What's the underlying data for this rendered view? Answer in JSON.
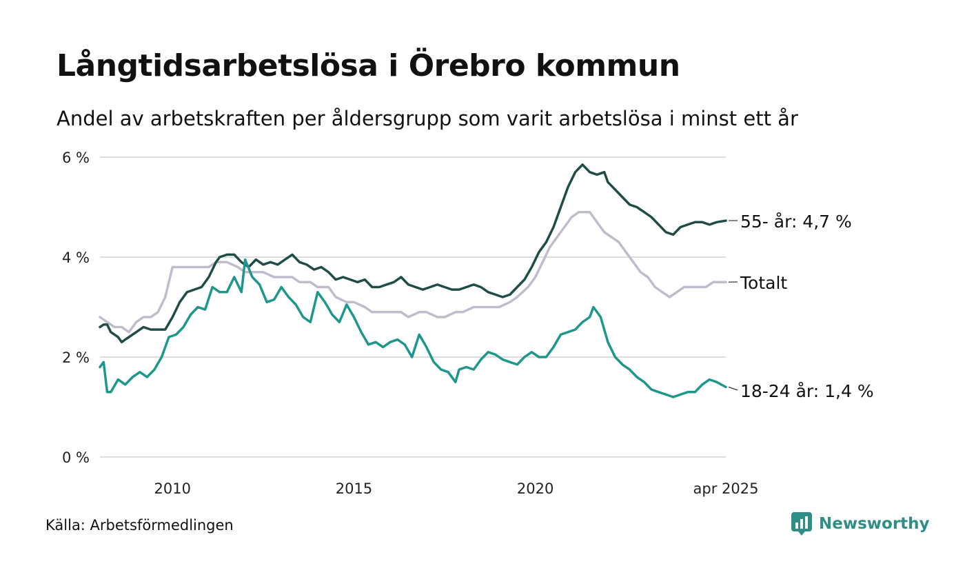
{
  "header": {
    "title": "Långtidsarbetslösa i Örebro kommun",
    "subtitle": "Andel av arbetskraften per åldersgrupp som varit arbetslösa i minst ett år"
  },
  "footer": {
    "source": "Källa: Arbetsförmedlingen",
    "brand": "Newsworthy",
    "brand_icon": "bar-chart-icon",
    "brand_color": "#2f8f86"
  },
  "chart_data": {
    "type": "line",
    "x_unit": "year",
    "xlim": [
      2008.0,
      2025.25
    ],
    "ylim": [
      0,
      6
    ],
    "y_ticks": [
      {
        "value": 0,
        "label": "0 %"
      },
      {
        "value": 2,
        "label": "2 %"
      },
      {
        "value": 4,
        "label": "4 %"
      },
      {
        "value": 6,
        "label": "6 %"
      }
    ],
    "x_ticks": [
      {
        "value": 2010,
        "label": "2010"
      },
      {
        "value": 2015,
        "label": "2015"
      },
      {
        "value": 2020,
        "label": "2020"
      },
      {
        "value": 2025.25,
        "label": "apr 2025"
      }
    ],
    "grid": "horizontal",
    "legend": "direct labels at line ends",
    "series": [
      {
        "name": "Totalt",
        "end_label": "Totalt",
        "color": "#c0bccb",
        "points": [
          [
            2008.0,
            2.8
          ],
          [
            2008.2,
            2.7
          ],
          [
            2008.4,
            2.6
          ],
          [
            2008.6,
            2.6
          ],
          [
            2008.8,
            2.5
          ],
          [
            2009.0,
            2.7
          ],
          [
            2009.2,
            2.8
          ],
          [
            2009.4,
            2.8
          ],
          [
            2009.6,
            2.9
          ],
          [
            2009.8,
            3.2
          ],
          [
            2010.0,
            3.8
          ],
          [
            2010.3,
            3.8
          ],
          [
            2010.5,
            3.8
          ],
          [
            2010.8,
            3.8
          ],
          [
            2011.0,
            3.8
          ],
          [
            2011.2,
            3.9
          ],
          [
            2011.5,
            3.9
          ],
          [
            2011.8,
            3.8
          ],
          [
            2012.0,
            3.7
          ],
          [
            2012.3,
            3.7
          ],
          [
            2012.5,
            3.7
          ],
          [
            2012.8,
            3.6
          ],
          [
            2013.0,
            3.6
          ],
          [
            2013.3,
            3.6
          ],
          [
            2013.5,
            3.5
          ],
          [
            2013.8,
            3.5
          ],
          [
            2014.0,
            3.4
          ],
          [
            2014.3,
            3.4
          ],
          [
            2014.5,
            3.2
          ],
          [
            2014.8,
            3.1
          ],
          [
            2015.0,
            3.1
          ],
          [
            2015.3,
            3.0
          ],
          [
            2015.5,
            2.9
          ],
          [
            2015.8,
            2.9
          ],
          [
            2016.0,
            2.9
          ],
          [
            2016.3,
            2.9
          ],
          [
            2016.5,
            2.8
          ],
          [
            2016.8,
            2.9
          ],
          [
            2017.0,
            2.9
          ],
          [
            2017.3,
            2.8
          ],
          [
            2017.5,
            2.8
          ],
          [
            2017.8,
            2.9
          ],
          [
            2018.0,
            2.9
          ],
          [
            2018.3,
            3.0
          ],
          [
            2018.5,
            3.0
          ],
          [
            2018.8,
            3.0
          ],
          [
            2019.0,
            3.0
          ],
          [
            2019.3,
            3.1
          ],
          [
            2019.5,
            3.2
          ],
          [
            2019.8,
            3.4
          ],
          [
            2020.0,
            3.6
          ],
          [
            2020.2,
            3.9
          ],
          [
            2020.4,
            4.2
          ],
          [
            2020.6,
            4.4
          ],
          [
            2020.8,
            4.6
          ],
          [
            2021.0,
            4.8
          ],
          [
            2021.2,
            4.9
          ],
          [
            2021.5,
            4.9
          ],
          [
            2021.7,
            4.7
          ],
          [
            2021.9,
            4.5
          ],
          [
            2022.1,
            4.4
          ],
          [
            2022.3,
            4.3
          ],
          [
            2022.5,
            4.1
          ],
          [
            2022.7,
            3.9
          ],
          [
            2022.9,
            3.7
          ],
          [
            2023.1,
            3.6
          ],
          [
            2023.3,
            3.4
          ],
          [
            2023.5,
            3.3
          ],
          [
            2023.7,
            3.2
          ],
          [
            2023.9,
            3.3
          ],
          [
            2024.1,
            3.4
          ],
          [
            2024.3,
            3.4
          ],
          [
            2024.5,
            3.4
          ],
          [
            2024.7,
            3.4
          ],
          [
            2024.9,
            3.5
          ],
          [
            2025.1,
            3.5
          ],
          [
            2025.25,
            3.5
          ]
        ]
      },
      {
        "name": "55- år",
        "end_label": "55- år: 4,7 %",
        "color": "#1f4d46",
        "points": [
          [
            2008.0,
            2.6
          ],
          [
            2008.1,
            2.65
          ],
          [
            2008.2,
            2.65
          ],
          [
            2008.3,
            2.5
          ],
          [
            2008.4,
            2.45
          ],
          [
            2008.5,
            2.4
          ],
          [
            2008.6,
            2.3
          ],
          [
            2008.7,
            2.35
          ],
          [
            2008.8,
            2.4
          ],
          [
            2009.0,
            2.5
          ],
          [
            2009.2,
            2.6
          ],
          [
            2009.4,
            2.55
          ],
          [
            2009.6,
            2.55
          ],
          [
            2009.8,
            2.55
          ],
          [
            2010.0,
            2.8
          ],
          [
            2010.2,
            3.1
          ],
          [
            2010.4,
            3.3
          ],
          [
            2010.6,
            3.35
          ],
          [
            2010.8,
            3.4
          ],
          [
            2011.0,
            3.6
          ],
          [
            2011.2,
            3.9
          ],
          [
            2011.3,
            4.0
          ],
          [
            2011.5,
            4.05
          ],
          [
            2011.7,
            4.05
          ],
          [
            2011.9,
            3.9
          ],
          [
            2012.1,
            3.8
          ],
          [
            2012.3,
            3.95
          ],
          [
            2012.5,
            3.85
          ],
          [
            2012.7,
            3.9
          ],
          [
            2012.9,
            3.85
          ],
          [
            2013.1,
            3.95
          ],
          [
            2013.3,
            4.05
          ],
          [
            2013.5,
            3.9
          ],
          [
            2013.7,
            3.85
          ],
          [
            2013.9,
            3.75
          ],
          [
            2014.1,
            3.8
          ],
          [
            2014.3,
            3.7
          ],
          [
            2014.5,
            3.55
          ],
          [
            2014.7,
            3.6
          ],
          [
            2014.9,
            3.55
          ],
          [
            2015.1,
            3.5
          ],
          [
            2015.3,
            3.55
          ],
          [
            2015.5,
            3.4
          ],
          [
            2015.7,
            3.4
          ],
          [
            2015.9,
            3.45
          ],
          [
            2016.1,
            3.5
          ],
          [
            2016.3,
            3.6
          ],
          [
            2016.5,
            3.45
          ],
          [
            2016.7,
            3.4
          ],
          [
            2016.9,
            3.35
          ],
          [
            2017.1,
            3.4
          ],
          [
            2017.3,
            3.45
          ],
          [
            2017.5,
            3.4
          ],
          [
            2017.7,
            3.35
          ],
          [
            2017.9,
            3.35
          ],
          [
            2018.1,
            3.4
          ],
          [
            2018.3,
            3.45
          ],
          [
            2018.5,
            3.4
          ],
          [
            2018.7,
            3.3
          ],
          [
            2018.9,
            3.25
          ],
          [
            2019.1,
            3.2
          ],
          [
            2019.3,
            3.25
          ],
          [
            2019.5,
            3.4
          ],
          [
            2019.7,
            3.55
          ],
          [
            2019.9,
            3.8
          ],
          [
            2020.1,
            4.1
          ],
          [
            2020.3,
            4.3
          ],
          [
            2020.5,
            4.6
          ],
          [
            2020.7,
            5.0
          ],
          [
            2020.9,
            5.4
          ],
          [
            2021.1,
            5.7
          ],
          [
            2021.3,
            5.85
          ],
          [
            2021.5,
            5.7
          ],
          [
            2021.7,
            5.65
          ],
          [
            2021.9,
            5.7
          ],
          [
            2022.0,
            5.5
          ],
          [
            2022.2,
            5.35
          ],
          [
            2022.4,
            5.2
          ],
          [
            2022.6,
            5.05
          ],
          [
            2022.8,
            5.0
          ],
          [
            2023.0,
            4.9
          ],
          [
            2023.2,
            4.8
          ],
          [
            2023.4,
            4.65
          ],
          [
            2023.6,
            4.5
          ],
          [
            2023.8,
            4.45
          ],
          [
            2024.0,
            4.6
          ],
          [
            2024.2,
            4.65
          ],
          [
            2024.4,
            4.7
          ],
          [
            2024.6,
            4.7
          ],
          [
            2024.8,
            4.65
          ],
          [
            2025.0,
            4.7
          ],
          [
            2025.25,
            4.73
          ]
        ]
      },
      {
        "name": "18-24 år",
        "end_label": "18-24 år: 1,4 %",
        "color": "#1e978b",
        "points": [
          [
            2008.0,
            1.8
          ],
          [
            2008.1,
            1.9
          ],
          [
            2008.2,
            1.3
          ],
          [
            2008.3,
            1.3
          ],
          [
            2008.5,
            1.55
          ],
          [
            2008.7,
            1.45
          ],
          [
            2008.9,
            1.6
          ],
          [
            2009.1,
            1.7
          ],
          [
            2009.3,
            1.6
          ],
          [
            2009.5,
            1.75
          ],
          [
            2009.7,
            2.0
          ],
          [
            2009.9,
            2.4
          ],
          [
            2010.1,
            2.45
          ],
          [
            2010.3,
            2.6
          ],
          [
            2010.5,
            2.85
          ],
          [
            2010.7,
            3.0
          ],
          [
            2010.9,
            2.95
          ],
          [
            2011.1,
            3.4
          ],
          [
            2011.3,
            3.3
          ],
          [
            2011.5,
            3.3
          ],
          [
            2011.7,
            3.6
          ],
          [
            2011.9,
            3.3
          ],
          [
            2012.0,
            3.95
          ],
          [
            2012.2,
            3.6
          ],
          [
            2012.4,
            3.45
          ],
          [
            2012.6,
            3.1
          ],
          [
            2012.8,
            3.15
          ],
          [
            2013.0,
            3.4
          ],
          [
            2013.2,
            3.2
          ],
          [
            2013.4,
            3.05
          ],
          [
            2013.6,
            2.8
          ],
          [
            2013.8,
            2.7
          ],
          [
            2014.0,
            3.3
          ],
          [
            2014.2,
            3.1
          ],
          [
            2014.4,
            2.85
          ],
          [
            2014.6,
            2.7
          ],
          [
            2014.8,
            3.05
          ],
          [
            2015.0,
            2.8
          ],
          [
            2015.2,
            2.5
          ],
          [
            2015.4,
            2.25
          ],
          [
            2015.6,
            2.3
          ],
          [
            2015.8,
            2.2
          ],
          [
            2016.0,
            2.3
          ],
          [
            2016.2,
            2.35
          ],
          [
            2016.4,
            2.25
          ],
          [
            2016.6,
            2.0
          ],
          [
            2016.8,
            2.45
          ],
          [
            2017.0,
            2.2
          ],
          [
            2017.2,
            1.9
          ],
          [
            2017.4,
            1.75
          ],
          [
            2017.6,
            1.7
          ],
          [
            2017.8,
            1.5
          ],
          [
            2017.9,
            1.75
          ],
          [
            2018.1,
            1.8
          ],
          [
            2018.3,
            1.75
          ],
          [
            2018.5,
            1.95
          ],
          [
            2018.7,
            2.1
          ],
          [
            2018.9,
            2.05
          ],
          [
            2019.1,
            1.95
          ],
          [
            2019.3,
            1.9
          ],
          [
            2019.5,
            1.85
          ],
          [
            2019.7,
            2.0
          ],
          [
            2019.9,
            2.1
          ],
          [
            2020.1,
            2.0
          ],
          [
            2020.3,
            2.0
          ],
          [
            2020.5,
            2.2
          ],
          [
            2020.7,
            2.45
          ],
          [
            2020.9,
            2.5
          ],
          [
            2021.1,
            2.55
          ],
          [
            2021.3,
            2.7
          ],
          [
            2021.5,
            2.8
          ],
          [
            2021.6,
            3.0
          ],
          [
            2021.8,
            2.8
          ],
          [
            2022.0,
            2.3
          ],
          [
            2022.2,
            2.0
          ],
          [
            2022.4,
            1.85
          ],
          [
            2022.6,
            1.75
          ],
          [
            2022.8,
            1.6
          ],
          [
            2023.0,
            1.5
          ],
          [
            2023.2,
            1.35
          ],
          [
            2023.4,
            1.3
          ],
          [
            2023.6,
            1.25
          ],
          [
            2023.8,
            1.2
          ],
          [
            2024.0,
            1.25
          ],
          [
            2024.2,
            1.3
          ],
          [
            2024.4,
            1.3
          ],
          [
            2024.6,
            1.45
          ],
          [
            2024.8,
            1.55
          ],
          [
            2025.0,
            1.5
          ],
          [
            2025.25,
            1.4
          ]
        ]
      }
    ]
  }
}
